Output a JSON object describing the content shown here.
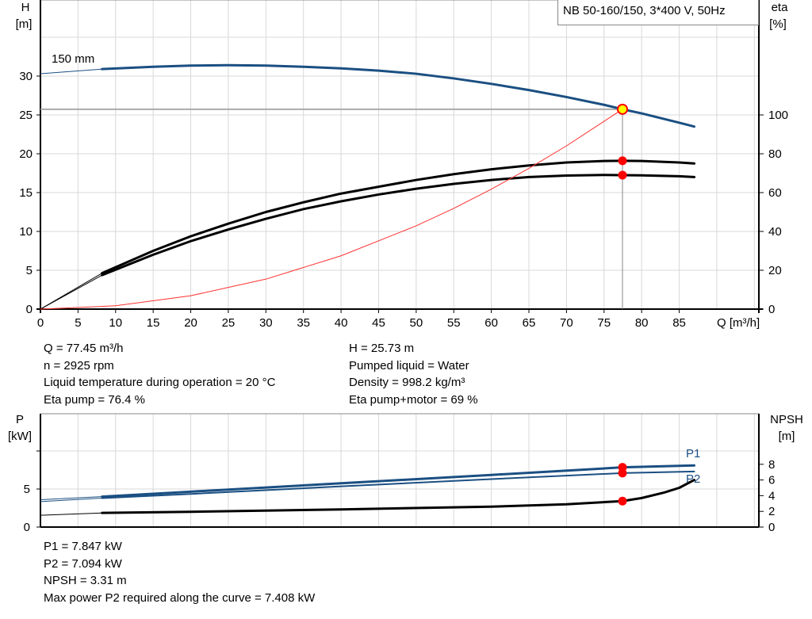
{
  "chart_data": [
    {
      "type": "line",
      "title": "NB 50-160/150, 3*400 V, 50Hz",
      "xlabel": "Q [m³/h]",
      "ylabel": "H\n[m]",
      "y2label": "eta\n[%]",
      "xlim": [
        0,
        95
      ],
      "ylim": [
        0,
        40
      ],
      "y2lim": [
        0,
        160
      ],
      "xticks": [
        0,
        5,
        10,
        15,
        20,
        25,
        30,
        35,
        40,
        45,
        50,
        55,
        60,
        65,
        70,
        75,
        80,
        85
      ],
      "yticks": [
        0,
        5,
        10,
        15,
        20,
        25,
        30
      ],
      "y2ticks": [
        0,
        20,
        40,
        60,
        80,
        100
      ],
      "grid": true,
      "curve_label": "150 mm",
      "series": [
        {
          "key": "H",
          "axis": "left",
          "color": "#1a4f82",
          "x": [
            0,
            8.2,
            15,
            20,
            25,
            30,
            35,
            40,
            45,
            50,
            55,
            60,
            65,
            70,
            75,
            77.45,
            80,
            85,
            87
          ],
          "y": [
            30.3,
            30.9,
            31.2,
            31.35,
            31.4,
            31.35,
            31.2,
            31.0,
            30.7,
            30.3,
            29.7,
            29.0,
            28.2,
            27.3,
            26.3,
            25.73,
            25.2,
            24.0,
            23.5
          ]
        },
        {
          "key": "eta_pump",
          "axis": "right",
          "color": "#000000",
          "x": [
            0,
            8.2,
            15,
            20,
            25,
            30,
            35,
            40,
            45,
            50,
            55,
            60,
            65,
            70,
            75,
            77.45,
            80,
            85,
            87
          ],
          "y": [
            0,
            18.5,
            30,
            37.5,
            44,
            50,
            55,
            59.5,
            63,
            66.5,
            69.5,
            72,
            74,
            75.5,
            76.3,
            76.4,
            76.3,
            75.5,
            75
          ]
        },
        {
          "key": "eta_pump_motor",
          "axis": "right",
          "color": "#000000",
          "x": [
            0,
            8.2,
            15,
            20,
            25,
            30,
            35,
            40,
            45,
            50,
            55,
            60,
            65,
            70,
            75,
            77.45,
            80,
            85,
            87
          ],
          "y": [
            0,
            17.5,
            28,
            35,
            41,
            46.5,
            51.5,
            55.5,
            59,
            62,
            64.5,
            66.5,
            68,
            68.8,
            69.1,
            69,
            68.9,
            68.4,
            68
          ]
        },
        {
          "key": "system",
          "axis": "left",
          "color": "#ff3030",
          "x": [
            0,
            10,
            20,
            30,
            40,
            50,
            55,
            60,
            65,
            70,
            77.45
          ],
          "y": [
            0,
            0.43,
            1.72,
            3.86,
            6.86,
            10.72,
            12.97,
            15.44,
            18.12,
            21.02,
            25.73
          ]
        }
      ],
      "duty_point": {
        "Q": 77.45,
        "H": 25.73,
        "eta_pump": 76.4,
        "eta_pump_motor": 69
      },
      "colors": {
        "duty_point_fill": "#ffff00",
        "duty_point_stroke": "#ff0000",
        "marker": "#ff0000",
        "grid": "#d8d8d8"
      }
    },
    {
      "type": "line",
      "ylabel": "P\n[kW]",
      "y2label": "NPSH\n[m]",
      "xlim": [
        0,
        95
      ],
      "ylim": [
        0,
        15
      ],
      "y2lim": [
        0,
        14.5
      ],
      "yticks": [
        0,
        5
      ],
      "y2ticks": [
        0,
        2,
        4,
        6,
        8
      ],
      "grid": true,
      "series": [
        {
          "name": "P1",
          "axis": "left",
          "color": "#1a4f82",
          "x": [
            0,
            8.2,
            20,
            40,
            60,
            77.45,
            87
          ],
          "y": [
            3.6,
            4.0,
            4.65,
            5.75,
            6.85,
            7.847,
            8.1
          ]
        },
        {
          "name": "P2",
          "axis": "left",
          "color": "#1a4f82",
          "x": [
            0,
            8.2,
            20,
            40,
            60,
            77.45,
            87
          ],
          "y": [
            3.35,
            3.8,
            4.35,
            5.35,
            6.3,
            7.094,
            7.3
          ]
        },
        {
          "key": "NPSH",
          "axis": "right",
          "color": "#000000",
          "x": [
            0,
            8.2,
            20,
            40,
            60,
            70,
            77.45,
            80,
            83,
            85,
            87
          ],
          "y": [
            1.5,
            1.8,
            1.95,
            2.25,
            2.6,
            2.9,
            3.31,
            3.7,
            4.4,
            5.0,
            6.0
          ]
        }
      ]
    }
  ],
  "info_top_left": [
    "Q = 77.45 m³/h",
    "n = 2925 rpm",
    "Liquid temperature during operation = 20 °C",
    "Eta pump = 76.4 %"
  ],
  "info_top_right": [
    "H = 25.73 m",
    "Pumped liquid = Water",
    "Density = 998.2 kg/m³",
    "Eta pump+motor = 69 %"
  ],
  "info_bottom": [
    "P1 = 7.847 kW",
    "P2 = 7.094 kW",
    "NPSH = 3.31 m",
    "Max power P2 required along the curve = 7.408 kW"
  ]
}
